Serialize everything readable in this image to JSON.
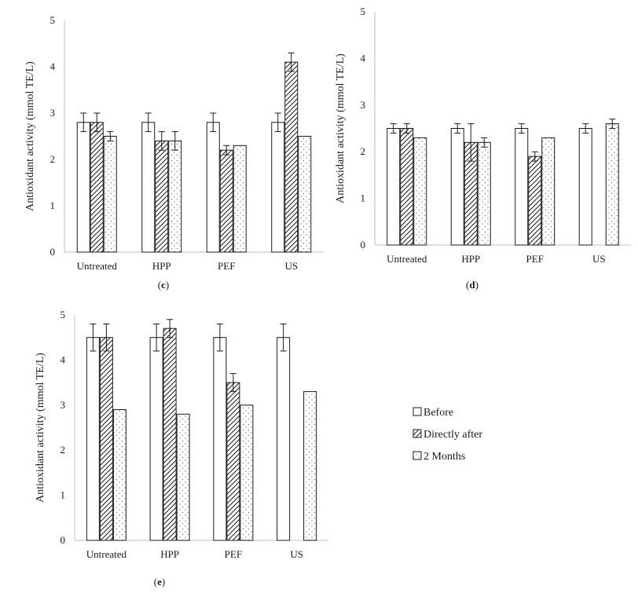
{
  "legend": [
    "Before",
    "Directly after",
    "2 Months"
  ],
  "colors": {
    "axis": "#bfbfbf",
    "bar_stroke": "#1a1a1a",
    "hatch": "#1a1a1a",
    "dots": "#555555",
    "background": "#ffffff"
  },
  "chart_data": [
    {
      "id": "c",
      "type": "bar",
      "panel_label": "(c)",
      "ylabel": "Antioxidant activity (mmol TE/L)",
      "ylim": [
        0,
        5
      ],
      "yticks": [
        "0",
        "1",
        "2",
        "3",
        "4",
        "5"
      ],
      "categories": [
        "Untreated",
        "HPP",
        "PEF",
        "US"
      ],
      "series": [
        {
          "name": "Before",
          "values": [
            2.8,
            2.8,
            2.8,
            2.8
          ],
          "errors": [
            0.2,
            0.2,
            0.2,
            0.2
          ]
        },
        {
          "name": "Directly after",
          "values": [
            2.8,
            2.4,
            2.2,
            4.1
          ],
          "errors": [
            0.2,
            0.2,
            0.1,
            0.2
          ]
        },
        {
          "name": "2 Months",
          "values": [
            2.5,
            2.4,
            2.3,
            2.5
          ],
          "errors": [
            0.1,
            0.2,
            0,
            0
          ]
        }
      ]
    },
    {
      "id": "d",
      "type": "bar",
      "panel_label": "(d)",
      "ylabel": "Antioxidant activity (mmol TE/L)",
      "ylim": [
        0,
        5
      ],
      "yticks": [
        "0",
        "1",
        "2",
        "3",
        "4",
        "5"
      ],
      "categories": [
        "Untreated",
        "HPP",
        "PEF",
        "US"
      ],
      "series": [
        {
          "name": "Before",
          "values": [
            2.5,
            2.5,
            2.5,
            2.5
          ],
          "errors": [
            0.1,
            0.1,
            0.1,
            0.1
          ]
        },
        {
          "name": "Directly after",
          "values": [
            2.5,
            2.2,
            1.9,
            null
          ],
          "errors": [
            0.1,
            0.4,
            0.1,
            null
          ]
        },
        {
          "name": "2 Months",
          "values": [
            2.3,
            2.2,
            2.3,
            2.6
          ],
          "errors": [
            0,
            0.1,
            0,
            0.1
          ]
        }
      ]
    },
    {
      "id": "e",
      "type": "bar",
      "panel_label": "(e)",
      "ylabel": "Antioxidant activity (mmol TE/L)",
      "ylim": [
        0,
        5
      ],
      "yticks": [
        "0",
        "1",
        "2",
        "3",
        "4",
        "5"
      ],
      "categories": [
        "Untreated",
        "HPP",
        "PEF",
        "US"
      ],
      "series": [
        {
          "name": "Before",
          "values": [
            4.5,
            4.5,
            4.5,
            4.5
          ],
          "errors": [
            0.3,
            0.3,
            0.3,
            0.3
          ]
        },
        {
          "name": "Directly after",
          "values": [
            4.5,
            4.7,
            3.5,
            null
          ],
          "errors": [
            0.3,
            0.2,
            0.2,
            null
          ]
        },
        {
          "name": "2 Months",
          "values": [
            2.9,
            2.8,
            3.0,
            3.3
          ],
          "errors": [
            0,
            0,
            0,
            0
          ]
        }
      ]
    }
  ]
}
